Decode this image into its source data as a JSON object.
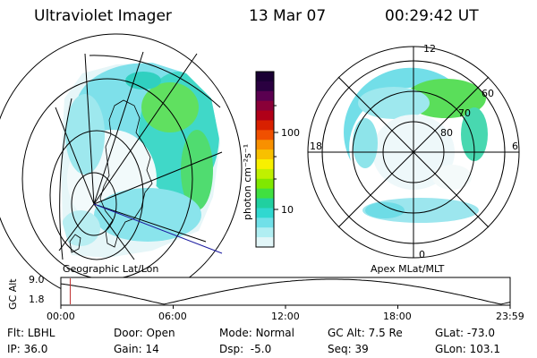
{
  "header": {
    "instrument": "Ultraviolet Imager",
    "date": "13 Mar 07",
    "time": "00:29:42 UT"
  },
  "colorbar": {
    "label": "photon cm⁻²s⁻¹",
    "ticks": [
      "100",
      "10"
    ],
    "colors": [
      "#1a0033",
      "#2a0040",
      "#5a0050",
      "#8a0038",
      "#b00018",
      "#d82000",
      "#f05000",
      "#f89000",
      "#f8c000",
      "#f8f000",
      "#c0f000",
      "#80e800",
      "#40e040",
      "#20d0a0",
      "#30d8d0",
      "#70e0e8",
      "#b0eef2",
      "#e2f6f8"
    ]
  },
  "left_map": {
    "caption": "Geographic Lat/Lon"
  },
  "right_map": {
    "caption": "Apex MLat/MLT",
    "mlt_labels": {
      "top": "12",
      "bottom": "0",
      "left": "18",
      "right": "6"
    },
    "lat_labels": [
      "60",
      "70",
      "80"
    ]
  },
  "altitude_plot": {
    "axis_title": "GC Alt",
    "y_ticks": [
      "9.0",
      "1.8"
    ],
    "x_ticks": [
      "00:00",
      "06:00",
      "12:00",
      "18:00",
      "23:59"
    ],
    "current_time_marker_hours": 0.5
  },
  "info": {
    "row1": [
      {
        "label": "Flt:",
        "value": "LBHL"
      },
      {
        "label": "Door:",
        "value": "Open"
      },
      {
        "label": "Mode:",
        "value": "Normal"
      },
      {
        "label": "GC Alt:",
        "value": "7.5 Re"
      },
      {
        "label": "GLat:",
        "value": "-73.0"
      }
    ],
    "row2": [
      {
        "label": "IP:",
        "value": "36.0"
      },
      {
        "label": "Gain:",
        "value": "14"
      },
      {
        "label": "Dsp:",
        "value": "-5.0"
      },
      {
        "label": "Seq:",
        "value": "39"
      },
      {
        "label": "GLon:",
        "value": "103.1"
      }
    ]
  }
}
